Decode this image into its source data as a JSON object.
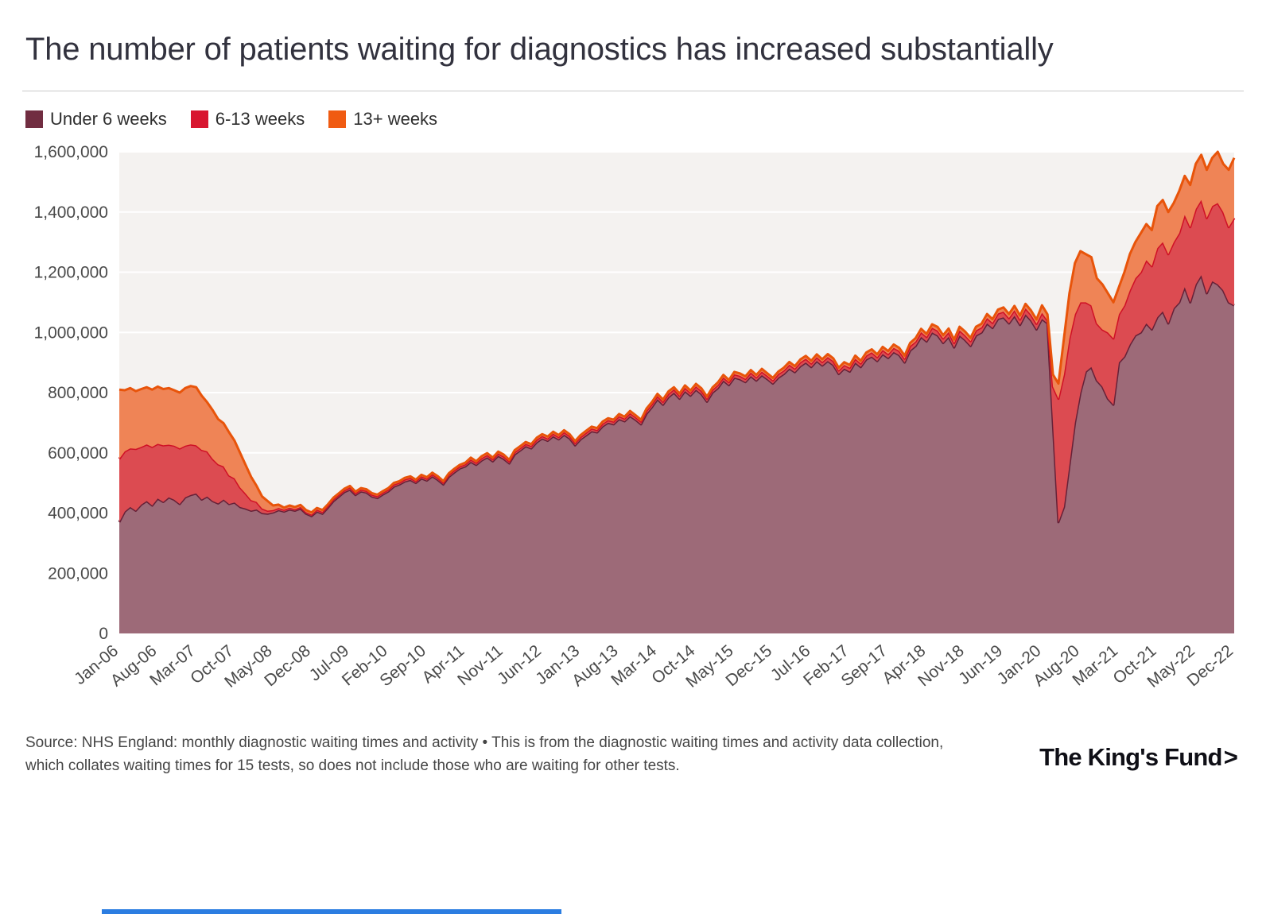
{
  "header": {
    "title": "The number of patients waiting for diagnostics has increased substantially"
  },
  "legend": {
    "items": [
      {
        "label": "Under 6 weeks",
        "color": "#712d41"
      },
      {
        "label": "6-13 weeks",
        "color": "#d8152f"
      },
      {
        "label": "13+ weeks",
        "color": "#f05b12"
      }
    ]
  },
  "chart_data": {
    "type": "area",
    "stacked": true,
    "title": "The number of patients waiting for diagnostics has increased substantially",
    "x_unit": "month",
    "x_start": "Jan-06",
    "x_end": "Dec-22",
    "x_tick_labels": [
      "Jan-06",
      "Aug-06",
      "Mar-07",
      "Oct-07",
      "May-08",
      "Dec-08",
      "Jul-09",
      "Feb-10",
      "Sep-10",
      "Apr-11",
      "Nov-11",
      "Jun-12",
      "Jan-13",
      "Aug-13",
      "Mar-14",
      "Oct-14",
      "May-15",
      "Dec-15",
      "Jul-16",
      "Feb-17",
      "Sep-17",
      "Apr-18",
      "Nov-18",
      "Jun-19",
      "Jan-20",
      "Aug-20",
      "Mar-21",
      "Oct-21",
      "May-22",
      "Dec-22"
    ],
    "x_tick_indices": [
      0,
      7,
      14,
      21,
      28,
      35,
      42,
      49,
      56,
      63,
      70,
      77,
      84,
      91,
      98,
      105,
      112,
      119,
      126,
      133,
      140,
      147,
      154,
      161,
      168,
      175,
      182,
      189,
      196,
      203
    ],
    "ylim": [
      0,
      1600000
    ],
    "y_tick_step": 200000,
    "y_tick_labels": [
      "0",
      "200,000",
      "400,000",
      "600,000",
      "800,000",
      "1,000,000",
      "1,200,000",
      "1,400,000",
      "1,600,000"
    ],
    "plot_bg": "#f4f2f0",
    "grid_color": "#ffffff",
    "legend_position": "top",
    "series": [
      {
        "name": "Under 6 weeks",
        "fill": "#9d6a78",
        "stroke": "#662138",
        "values": [
          370000,
          405000,
          420000,
          408000,
          428000,
          440000,
          425000,
          448000,
          437000,
          452000,
          444000,
          430000,
          452000,
          460000,
          465000,
          445000,
          455000,
          440000,
          432000,
          445000,
          430000,
          435000,
          420000,
          415000,
          408000,
          412000,
          400000,
          398000,
          402000,
          410000,
          405000,
          412000,
          408000,
          415000,
          398000,
          390000,
          405000,
          398000,
          418000,
          440000,
          455000,
          470000,
          478000,
          460000,
          472000,
          468000,
          455000,
          450000,
          462000,
          472000,
          488000,
          495000,
          505000,
          510000,
          500000,
          515000,
          508000,
          522000,
          510000,
          495000,
          520000,
          535000,
          548000,
          555000,
          570000,
          560000,
          575000,
          585000,
          572000,
          590000,
          580000,
          565000,
          595000,
          608000,
          622000,
          615000,
          635000,
          648000,
          640000,
          655000,
          645000,
          660000,
          648000,
          625000,
          645000,
          658000,
          672000,
          668000,
          688000,
          700000,
          695000,
          712000,
          705000,
          722000,
          710000,
          695000,
          730000,
          752000,
          778000,
          760000,
          785000,
          800000,
          780000,
          805000,
          790000,
          810000,
          795000,
          770000,
          800000,
          815000,
          840000,
          825000,
          850000,
          845000,
          835000,
          855000,
          840000,
          858000,
          845000,
          830000,
          850000,
          862000,
          880000,
          868000,
          888000,
          900000,
          885000,
          905000,
          890000,
          905000,
          892000,
          862000,
          880000,
          870000,
          900000,
          885000,
          910000,
          920000,
          905000,
          928000,
          915000,
          935000,
          925000,
          900000,
          940000,
          955000,
          985000,
          970000,
          1000000,
          990000,
          965000,
          985000,
          950000,
          990000,
          975000,
          955000,
          990000,
          1000000,
          1030000,
          1015000,
          1045000,
          1050000,
          1030000,
          1055000,
          1025000,
          1060000,
          1040000,
          1010000,
          1045000,
          1030000,
          700000,
          370000,
          420000,
          560000,
          700000,
          800000,
          870000,
          885000,
          840000,
          820000,
          780000,
          760000,
          900000,
          920000,
          960000,
          990000,
          1000000,
          1030000,
          1010000,
          1050000,
          1070000,
          1030000,
          1080000,
          1100000,
          1150000,
          1100000,
          1160000,
          1190000,
          1130000,
          1170000,
          1160000,
          1140000,
          1100000,
          1090000
        ]
      },
      {
        "name": "6-13 weeks",
        "fill": "#dc4b51",
        "stroke": "#cf1126",
        "values": [
          210000,
          200000,
          195000,
          205000,
          192000,
          188000,
          195000,
          182000,
          188000,
          175000,
          180000,
          185000,
          172000,
          168000,
          160000,
          165000,
          150000,
          140000,
          130000,
          110000,
          95000,
          80000,
          65000,
          50000,
          35000,
          25000,
          15000,
          10000,
          8000,
          7000,
          6000,
          6000,
          5000,
          5000,
          5000,
          5000,
          6000,
          6000,
          6000,
          6000,
          6000,
          6000,
          7000,
          6000,
          6000,
          6000,
          6000,
          6000,
          6000,
          6000,
          7000,
          6000,
          7000,
          7000,
          6000,
          7000,
          6000,
          7000,
          7000,
          6000,
          7000,
          7000,
          7000,
          7000,
          8000,
          7000,
          8000,
          8000,
          7000,
          8000,
          8000,
          7000,
          8000,
          8000,
          8000,
          8000,
          9000,
          8000,
          8000,
          9000,
          8000,
          9000,
          8000,
          8000,
          8000,
          9000,
          9000,
          8000,
          9000,
          9000,
          9000,
          10000,
          9000,
          10000,
          9000,
          9000,
          10000,
          10000,
          11000,
          10000,
          11000,
          11000,
          10000,
          11000,
          10000,
          11000,
          11000,
          10000,
          10000,
          11000,
          11000,
          10000,
          11000,
          11000,
          11000,
          12000,
          11000,
          12000,
          11000,
          11000,
          12000,
          12000,
          13000,
          12000,
          13000,
          13000,
          12000,
          13000,
          12000,
          13000,
          13000,
          12000,
          12000,
          13000,
          13000,
          12000,
          13000,
          14000,
          13000,
          14000,
          13000,
          14000,
          14000,
          13000,
          15000,
          15000,
          16000,
          15000,
          16000,
          16000,
          15000,
          16000,
          15000,
          17000,
          16000,
          16000,
          17000,
          17000,
          18000,
          17000,
          18000,
          19000,
          18000,
          19000,
          18000,
          20000,
          19000,
          19000,
          20000,
          10000,
          120000,
          410000,
          440000,
          420000,
          360000,
          300000,
          230000,
          205000,
          190000,
          190000,
          220000,
          220000,
          160000,
          170000,
          180000,
          190000,
          200000,
          210000,
          210000,
          230000,
          230000,
          230000,
          220000,
          230000,
          240000,
          250000,
          250000,
          250000,
          250000,
          250000,
          270000,
          260000,
          250000,
          290000
        ]
      },
      {
        "name": "13+ weeks",
        "fill": "#ef8456",
        "stroke": "#e8540a",
        "values": [
          230000,
          203000,
          200000,
          192000,
          192000,
          190000,
          190000,
          190000,
          187000,
          188000,
          184000,
          185000,
          191000,
          194000,
          193000,
          180000,
          163000,
          162000,
          150000,
          143000,
          143000,
          125000,
          115000,
          95000,
          77000,
          53000,
          40000,
          32000,
          15000,
          11000,
          7000,
          7000,
          7000,
          7000,
          7000,
          7000,
          6000,
          6000,
          5000,
          5000,
          5000,
          5000,
          5000,
          5000,
          5000,
          5000,
          5000,
          5000,
          5000,
          5000,
          5000,
          5000,
          5000,
          5000,
          5000,
          5000,
          5000,
          5000,
          5000,
          5000,
          5000,
          5000,
          5000,
          5000,
          6000,
          5000,
          6000,
          6000,
          5000,
          6000,
          6000,
          5000,
          6000,
          6000,
          6000,
          6000,
          6000,
          6000,
          6000,
          6000,
          6000,
          6000,
          6000,
          6000,
          6000,
          6000,
          6000,
          6000,
          7000,
          6000,
          6000,
          7000,
          6000,
          7000,
          6000,
          6000,
          7000,
          7000,
          7000,
          7000,
          8000,
          7000,
          7000,
          8000,
          7000,
          8000,
          8000,
          7000,
          7000,
          8000,
          8000,
          7000,
          8000,
          8000,
          8000,
          8000,
          8000,
          9000,
          8000,
          8000,
          8000,
          9000,
          9000,
          8000,
          9000,
          9000,
          9000,
          9000,
          9000,
          10000,
          9000,
          9000,
          9000,
          9000,
          10000,
          9000,
          10000,
          10000,
          9000,
          10000,
          10000,
          11000,
          10000,
          10000,
          10000,
          11000,
          11000,
          10000,
          11000,
          12000,
          11000,
          12000,
          11000,
          12000,
          12000,
          11000,
          12000,
          12000,
          13000,
          12000,
          13000,
          14000,
          13000,
          14000,
          13000,
          15000,
          14000,
          14000,
          25000,
          20000,
          40000,
          50000,
          120000,
          150000,
          170000,
          170000,
          160000,
          160000,
          150000,
          150000,
          130000,
          120000,
          90000,
          110000,
          120000,
          120000,
          130000,
          120000,
          120000,
          140000,
          140000,
          140000,
          130000,
          140000,
          130000,
          140000,
          150000,
          150000,
          160000,
          160000,
          170000,
          160000,
          190000,
          200000
        ]
      }
    ]
  },
  "footer": {
    "source": "Source: NHS England: monthly diagnostic waiting times and activity • This is from the diagnostic waiting times and activity data collection, which collates waiting times for 15 tests, so does not include those who are waiting for other tests.",
    "logo_text": "The King's Fund",
    "logo_chevron": ">",
    "accent_bar_color": "#2b7de1"
  }
}
